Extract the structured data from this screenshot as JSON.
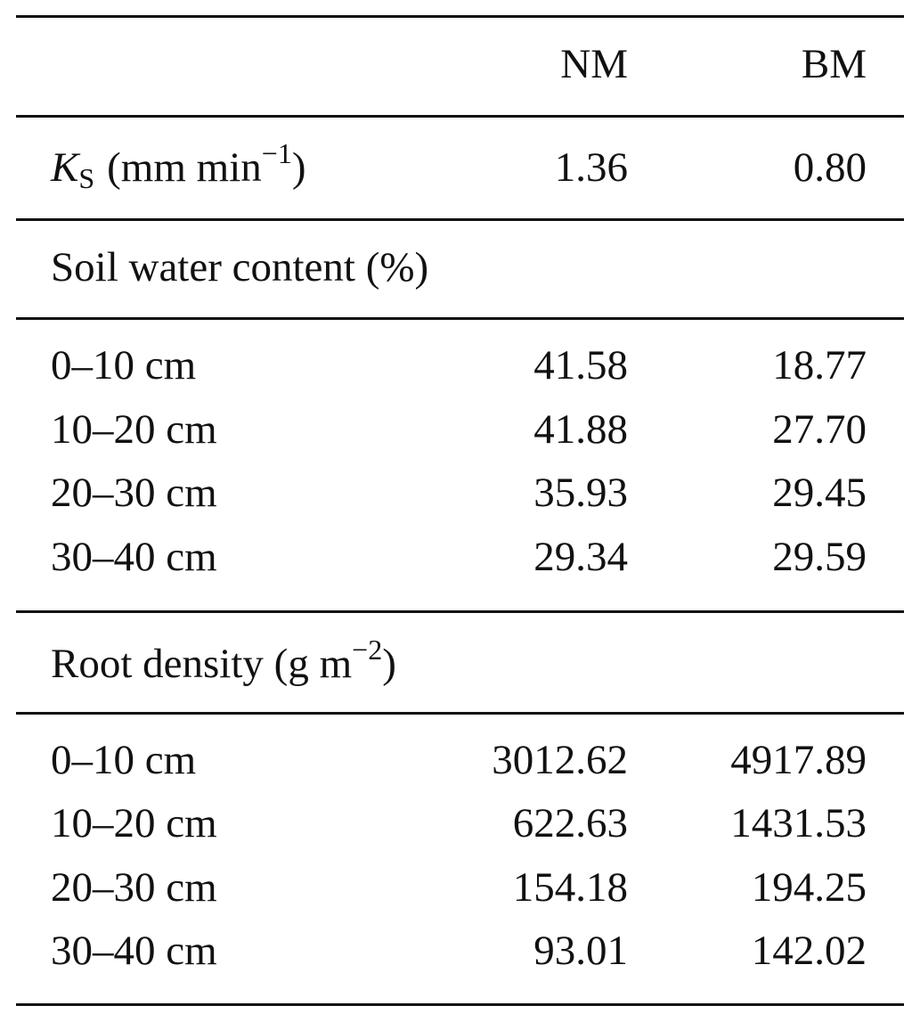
{
  "table": {
    "columns": [
      "NM",
      "BM"
    ],
    "ks": {
      "symbol": "K",
      "subscript": "S",
      "unit": "(mm min",
      "exponent": "−1",
      "close": ")",
      "values": [
        "1.36",
        "0.80"
      ]
    },
    "sections": [
      {
        "heading": {
          "text": "Soil water content (%)"
        },
        "rows": [
          {
            "label": "0–10 cm",
            "values": [
              "41.58",
              "18.77"
            ]
          },
          {
            "label": "10–20 cm",
            "values": [
              "41.88",
              "27.70"
            ]
          },
          {
            "label": "20–30 cm",
            "values": [
              "35.93",
              "29.45"
            ]
          },
          {
            "label": "30–40 cm",
            "values": [
              "29.34",
              "29.59"
            ]
          }
        ]
      },
      {
        "heading": {
          "text": "Root density (g m",
          "exponent": "−2",
          "close": ")"
        },
        "rows": [
          {
            "label": "0–10 cm",
            "values": [
              "3012.62",
              "4917.89"
            ]
          },
          {
            "label": "10–20 cm",
            "values": [
              "622.63",
              "1431.53"
            ]
          },
          {
            "label": "20–30 cm",
            "values": [
              "154.18",
              "194.25"
            ]
          },
          {
            "label": "30–40 cm",
            "values": [
              "93.01",
              "142.02"
            ]
          }
        ]
      }
    ]
  }
}
